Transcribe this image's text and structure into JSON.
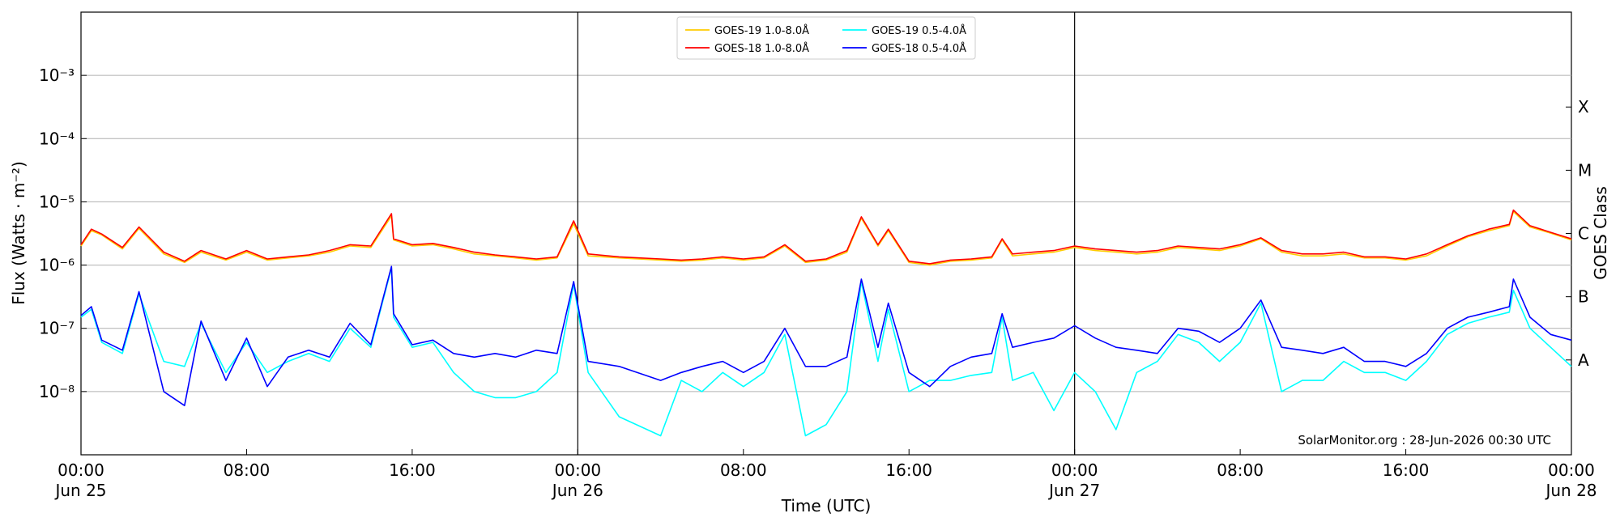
{
  "chart_data": {
    "type": "line",
    "ylabel": "Flux (Watts · m⁻²)",
    "xlabel": "Time (UTC)",
    "y2label": "GOES Class",
    "credit": "SolarMonitor.org : 28-Jun-2026 00:30 UTC",
    "yscale": "log",
    "ylim": [
      1e-09,
      0.01
    ],
    "xlim_hours": [
      0,
      72
    ],
    "grid": true,
    "legend_position": "top-center",
    "y_ticks": [
      {
        "value": 1e-08,
        "label": "10⁻⁸"
      },
      {
        "value": 1e-07,
        "label": "10⁻⁷"
      },
      {
        "value": 1e-06,
        "label": "10⁻⁶"
      },
      {
        "value": 1e-05,
        "label": "10⁻⁵"
      },
      {
        "value": 0.0001,
        "label": "10⁻⁴"
      },
      {
        "value": 0.001,
        "label": "10⁻³"
      }
    ],
    "x_ticks": [
      {
        "hour": 0,
        "time": "00:00",
        "date": "Jun 25"
      },
      {
        "hour": 8,
        "time": "08:00",
        "date": ""
      },
      {
        "hour": 16,
        "time": "16:00",
        "date": ""
      },
      {
        "hour": 24,
        "time": "00:00",
        "date": "Jun 26"
      },
      {
        "hour": 32,
        "time": "08:00",
        "date": ""
      },
      {
        "hour": 40,
        "time": "16:00",
        "date": ""
      },
      {
        "hour": 48,
        "time": "00:00",
        "date": "Jun 27"
      },
      {
        "hour": 56,
        "time": "08:00",
        "date": ""
      },
      {
        "hour": 64,
        "time": "16:00",
        "date": ""
      },
      {
        "hour": 72,
        "time": "00:00",
        "date": "Jun 28"
      }
    ],
    "day_boundaries_hours": [
      24,
      48
    ],
    "goes_classes": [
      {
        "label": "A",
        "value": 3.16e-08
      },
      {
        "label": "B",
        "value": 3.16e-07
      },
      {
        "label": "C",
        "value": 3.16e-06
      },
      {
        "label": "M",
        "value": 3.16e-05
      },
      {
        "label": "X",
        "value": 0.000316
      }
    ],
    "series": [
      {
        "name": "GOES-19 1.0-8.0Å",
        "color": "#ffcc00",
        "x": [
          0,
          0.5,
          1,
          2,
          2.8,
          4,
          5,
          5.8,
          7,
          8,
          9,
          10,
          11,
          12,
          13,
          14,
          15,
          15.1,
          16,
          17,
          18,
          19,
          20,
          21,
          22,
          23,
          23.8,
          24.5,
          26,
          28,
          29,
          30,
          31,
          32,
          33,
          34,
          35,
          36,
          37,
          37.7,
          38.5,
          39,
          40,
          41,
          42,
          43,
          44,
          44.5,
          45,
          46,
          47,
          48,
          49,
          50,
          51,
          52,
          53,
          54,
          55,
          56,
          57,
          58,
          59,
          60,
          61,
          62,
          63,
          64,
          65,
          66,
          67,
          68,
          69,
          69.2,
          70,
          71,
          72
        ],
        "y": [
          2e-06,
          3.5e-06,
          3e-06,
          1.8e-06,
          3.8e-06,
          1.5e-06,
          1.1e-06,
          1.6e-06,
          1.2e-06,
          1.6e-06,
          1.2e-06,
          1.3e-06,
          1.4e-06,
          1.6e-06,
          2e-06,
          1.9e-06,
          6e-06,
          2.5e-06,
          2e-06,
          2.1e-06,
          1.8e-06,
          1.5e-06,
          1.4e-06,
          1.3e-06,
          1.2e-06,
          1.3e-06,
          4.5e-06,
          1.4e-06,
          1.3e-06,
          1.2e-06,
          1.15e-06,
          1.2e-06,
          1.3e-06,
          1.2e-06,
          1.3e-06,
          2e-06,
          1.1e-06,
          1.2e-06,
          1.6e-06,
          5.5e-06,
          2e-06,
          3.5e-06,
          1.1e-06,
          1e-06,
          1.15e-06,
          1.2e-06,
          1.3e-06,
          2.5e-06,
          1.4e-06,
          1.5e-06,
          1.6e-06,
          1.9e-06,
          1.7e-06,
          1.6e-06,
          1.5e-06,
          1.6e-06,
          1.9e-06,
          1.8e-06,
          1.7e-06,
          2e-06,
          2.6e-06,
          1.6e-06,
          1.4e-06,
          1.4e-06,
          1.5e-06,
          1.3e-06,
          1.3e-06,
          1.2e-06,
          1.4e-06,
          2e-06,
          2.8e-06,
          3.5e-06,
          4.2e-06,
          7e-06,
          4e-06,
          3.2e-06,
          2.5e-06
        ]
      },
      {
        "name": "GOES-18 1.0-8.0Å",
        "color": "#ff0000",
        "x": [
          0,
          0.5,
          1,
          2,
          2.8,
          4,
          5,
          5.8,
          7,
          8,
          9,
          10,
          11,
          12,
          13,
          14,
          15,
          15.1,
          16,
          17,
          18,
          19,
          20,
          21,
          22,
          23,
          23.8,
          24.5,
          26,
          28,
          29,
          30,
          31,
          32,
          33,
          34,
          35,
          36,
          37,
          37.7,
          38.5,
          39,
          40,
          41,
          42,
          43,
          44,
          44.5,
          45,
          46,
          47,
          48,
          49,
          50,
          51,
          52,
          53,
          54,
          55,
          56,
          57,
          58,
          59,
          60,
          61,
          62,
          63,
          64,
          65,
          66,
          67,
          68,
          69,
          69.2,
          70,
          71,
          72
        ],
        "y": [
          2.1e-06,
          3.7e-06,
          3.1e-06,
          1.9e-06,
          4e-06,
          1.6e-06,
          1.15e-06,
          1.7e-06,
          1.25e-06,
          1.7e-06,
          1.25e-06,
          1.35e-06,
          1.45e-06,
          1.7e-06,
          2.1e-06,
          2e-06,
          6.5e-06,
          2.6e-06,
          2.1e-06,
          2.2e-06,
          1.9e-06,
          1.6e-06,
          1.45e-06,
          1.35e-06,
          1.25e-06,
          1.35e-06,
          5e-06,
          1.5e-06,
          1.35e-06,
          1.25e-06,
          1.2e-06,
          1.25e-06,
          1.35e-06,
          1.25e-06,
          1.35e-06,
          2.1e-06,
          1.15e-06,
          1.25e-06,
          1.7e-06,
          5.8e-06,
          2.1e-06,
          3.7e-06,
          1.15e-06,
          1.05e-06,
          1.2e-06,
          1.25e-06,
          1.35e-06,
          2.6e-06,
          1.5e-06,
          1.6e-06,
          1.7e-06,
          2e-06,
          1.8e-06,
          1.7e-06,
          1.6e-06,
          1.7e-06,
          2e-06,
          1.9e-06,
          1.8e-06,
          2.1e-06,
          2.7e-06,
          1.7e-06,
          1.5e-06,
          1.5e-06,
          1.6e-06,
          1.35e-06,
          1.35e-06,
          1.25e-06,
          1.5e-06,
          2.1e-06,
          2.9e-06,
          3.7e-06,
          4.4e-06,
          7.4e-06,
          4.2e-06,
          3.3e-06,
          2.6e-06
        ]
      },
      {
        "name": "GOES-19 0.5-4.0Å",
        "color": "#00ffff",
        "x": [
          0,
          0.5,
          1,
          2,
          2.8,
          4,
          5,
          5.8,
          7,
          8,
          9,
          10,
          11,
          12,
          13,
          14,
          15,
          15.1,
          16,
          17,
          18,
          19,
          20,
          21,
          22,
          23,
          23.8,
          24.5,
          26,
          28,
          29,
          30,
          31,
          32,
          33,
          34,
          35,
          36,
          37,
          37.7,
          38.5,
          39,
          40,
          41,
          42,
          43,
          44,
          44.5,
          45,
          46,
          47,
          48,
          49,
          50,
          51,
          52,
          53,
          54,
          55,
          56,
          57,
          58,
          59,
          60,
          61,
          62,
          63,
          64,
          65,
          66,
          67,
          68,
          69,
          69.2,
          70,
          71,
          72
        ],
        "y": [
          1.5e-07,
          2e-07,
          6e-08,
          4e-08,
          3.5e-07,
          3e-08,
          2.5e-08,
          1.2e-07,
          2e-08,
          6e-08,
          2e-08,
          3e-08,
          4e-08,
          3e-08,
          1e-07,
          5e-08,
          9e-07,
          1.5e-07,
          5e-08,
          6e-08,
          2e-08,
          1e-08,
          8e-09,
          8e-09,
          1e-08,
          2e-08,
          5e-07,
          2e-08,
          4e-09,
          2e-09,
          1.5e-08,
          1e-08,
          2e-08,
          1.2e-08,
          2e-08,
          8e-08,
          2e-09,
          3e-09,
          1e-08,
          5.5e-07,
          3e-08,
          2e-07,
          1e-08,
          1.5e-08,
          1.5e-08,
          1.8e-08,
          2e-08,
          1.5e-07,
          1.5e-08,
          2e-08,
          5e-09,
          2e-08,
          1e-08,
          2.5e-09,
          2e-08,
          3e-08,
          8e-08,
          6e-08,
          3e-08,
          6e-08,
          2.5e-07,
          1e-08,
          1.5e-08,
          1.5e-08,
          3e-08,
          2e-08,
          2e-08,
          1.5e-08,
          3e-08,
          8e-08,
          1.2e-07,
          1.5e-07,
          1.8e-07,
          4e-07,
          1e-07,
          5e-08,
          2.5e-08
        ]
      },
      {
        "name": "GOES-18 0.5-4.0Å",
        "color": "#0000ff",
        "x": [
          0,
          0.5,
          1,
          2,
          2.8,
          4,
          5,
          5.8,
          7,
          8,
          9,
          10,
          11,
          12,
          13,
          14,
          15,
          15.1,
          16,
          17,
          18,
          19,
          20,
          21,
          22,
          23,
          23.8,
          24.5,
          26,
          28,
          29,
          30,
          31,
          32,
          33,
          34,
          35,
          36,
          37,
          37.7,
          38.5,
          39,
          40,
          41,
          42,
          43,
          44,
          44.5,
          45,
          46,
          47,
          48,
          49,
          50,
          51,
          52,
          53,
          54,
          55,
          56,
          57,
          58,
          59,
          60,
          61,
          62,
          63,
          64,
          65,
          66,
          67,
          68,
          69,
          69.2,
          70,
          71,
          72
        ],
        "y": [
          1.6e-07,
          2.2e-07,
          6.5e-08,
          4.5e-08,
          3.8e-07,
          1e-08,
          6e-09,
          1.3e-07,
          1.5e-08,
          7e-08,
          1.2e-08,
          3.5e-08,
          4.5e-08,
          3.5e-08,
          1.2e-07,
          5.5e-08,
          9.5e-07,
          1.7e-07,
          5.5e-08,
          6.5e-08,
          4e-08,
          3.5e-08,
          4e-08,
          3.5e-08,
          4.5e-08,
          4e-08,
          5.5e-07,
          3e-08,
          2.5e-08,
          1.5e-08,
          2e-08,
          2.5e-08,
          3e-08,
          2e-08,
          3e-08,
          1e-07,
          2.5e-08,
          2.5e-08,
          3.5e-08,
          6e-07,
          5e-08,
          2.5e-07,
          2e-08,
          1.2e-08,
          2.5e-08,
          3.5e-08,
          4e-08,
          1.7e-07,
          5e-08,
          6e-08,
          7e-08,
          1.1e-07,
          7e-08,
          5e-08,
          4.5e-08,
          4e-08,
          1e-07,
          9e-08,
          6e-08,
          1e-07,
          2.8e-07,
          5e-08,
          4.5e-08,
          4e-08,
          5e-08,
          3e-08,
          3e-08,
          2.5e-08,
          4e-08,
          1e-07,
          1.5e-07,
          1.8e-07,
          2.2e-07,
          6e-07,
          1.5e-07,
          8e-08,
          6.5e-08
        ]
      }
    ]
  }
}
